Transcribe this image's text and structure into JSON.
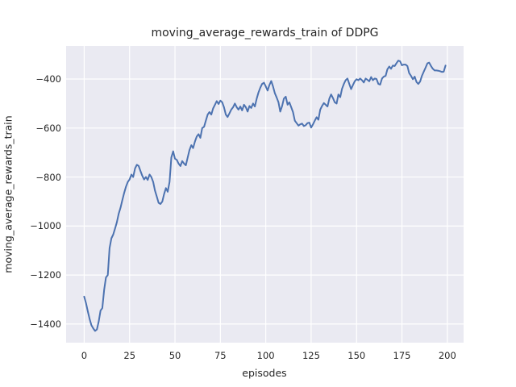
{
  "chart_data": {
    "type": "line",
    "title": "moving_average_rewards_train of DDPG",
    "xlabel": "episodes",
    "ylabel": "moving_average_rewards_train",
    "xlim": [
      -9.95,
      208.95
    ],
    "ylim": [
      -1476,
      -265
    ],
    "xticks": [
      0,
      25,
      50,
      75,
      100,
      125,
      150,
      175,
      200
    ],
    "xtick_labels": [
      "0",
      "25",
      "50",
      "75",
      "100",
      "125",
      "150",
      "175",
      "200"
    ],
    "yticks": [
      -400,
      -600,
      -800,
      -1000,
      -1200,
      -1400
    ],
    "ytick_labels": [
      "−400",
      "−600",
      "−800",
      "−1000",
      "−1200",
      "−1400"
    ],
    "grid": true,
    "legend": "none",
    "x_start": 0,
    "x_step": 1,
    "series": [
      {
        "name": "moving_average_rewards_train",
        "values": [
          -1288,
          -1315,
          -1348,
          -1380,
          -1405,
          -1418,
          -1428,
          -1422,
          -1390,
          -1345,
          -1335,
          -1260,
          -1210,
          -1200,
          -1090,
          -1050,
          -1035,
          -1010,
          -985,
          -950,
          -925,
          -895,
          -865,
          -840,
          -820,
          -810,
          -790,
          -800,
          -765,
          -750,
          -755,
          -775,
          -795,
          -810,
          -800,
          -812,
          -790,
          -800,
          -820,
          -855,
          -880,
          -905,
          -910,
          -900,
          -870,
          -845,
          -860,
          -820,
          -720,
          -695,
          -725,
          -730,
          -745,
          -755,
          -735,
          -745,
          -752,
          -720,
          -690,
          -670,
          -682,
          -655,
          -635,
          -625,
          -640,
          -600,
          -595,
          -570,
          -545,
          -535,
          -545,
          -520,
          -505,
          -490,
          -502,
          -488,
          -495,
          -515,
          -545,
          -555,
          -540,
          -525,
          -515,
          -500,
          -515,
          -525,
          -512,
          -528,
          -505,
          -515,
          -533,
          -510,
          -518,
          -500,
          -512,
          -480,
          -455,
          -435,
          -420,
          -415,
          -430,
          -447,
          -425,
          -408,
          -430,
          -458,
          -475,
          -495,
          -533,
          -510,
          -480,
          -472,
          -505,
          -495,
          -515,
          -535,
          -570,
          -580,
          -590,
          -585,
          -582,
          -592,
          -588,
          -580,
          -578,
          -598,
          -585,
          -570,
          -556,
          -566,
          -525,
          -510,
          -498,
          -505,
          -512,
          -480,
          -463,
          -478,
          -495,
          -500,
          -463,
          -474,
          -440,
          -420,
          -405,
          -398,
          -420,
          -441,
          -425,
          -409,
          -401,
          -405,
          -398,
          -405,
          -414,
          -398,
          -403,
          -409,
          -392,
          -405,
          -398,
          -400,
          -420,
          -423,
          -398,
          -390,
          -387,
          -360,
          -349,
          -358,
          -345,
          -347,
          -335,
          -325,
          -328,
          -344,
          -341,
          -341,
          -347,
          -376,
          -387,
          -401,
          -390,
          -412,
          -420,
          -410,
          -387,
          -370,
          -354,
          -336,
          -333,
          -347,
          -358,
          -365,
          -365,
          -366,
          -368,
          -371,
          -370,
          -345
        ]
      }
    ],
    "colors": {
      "line": "#4c72b0",
      "plot_background": "#eaeaf2",
      "grid": "#ffffff",
      "figure_background": "#ffffff",
      "text": "#262626"
    }
  }
}
